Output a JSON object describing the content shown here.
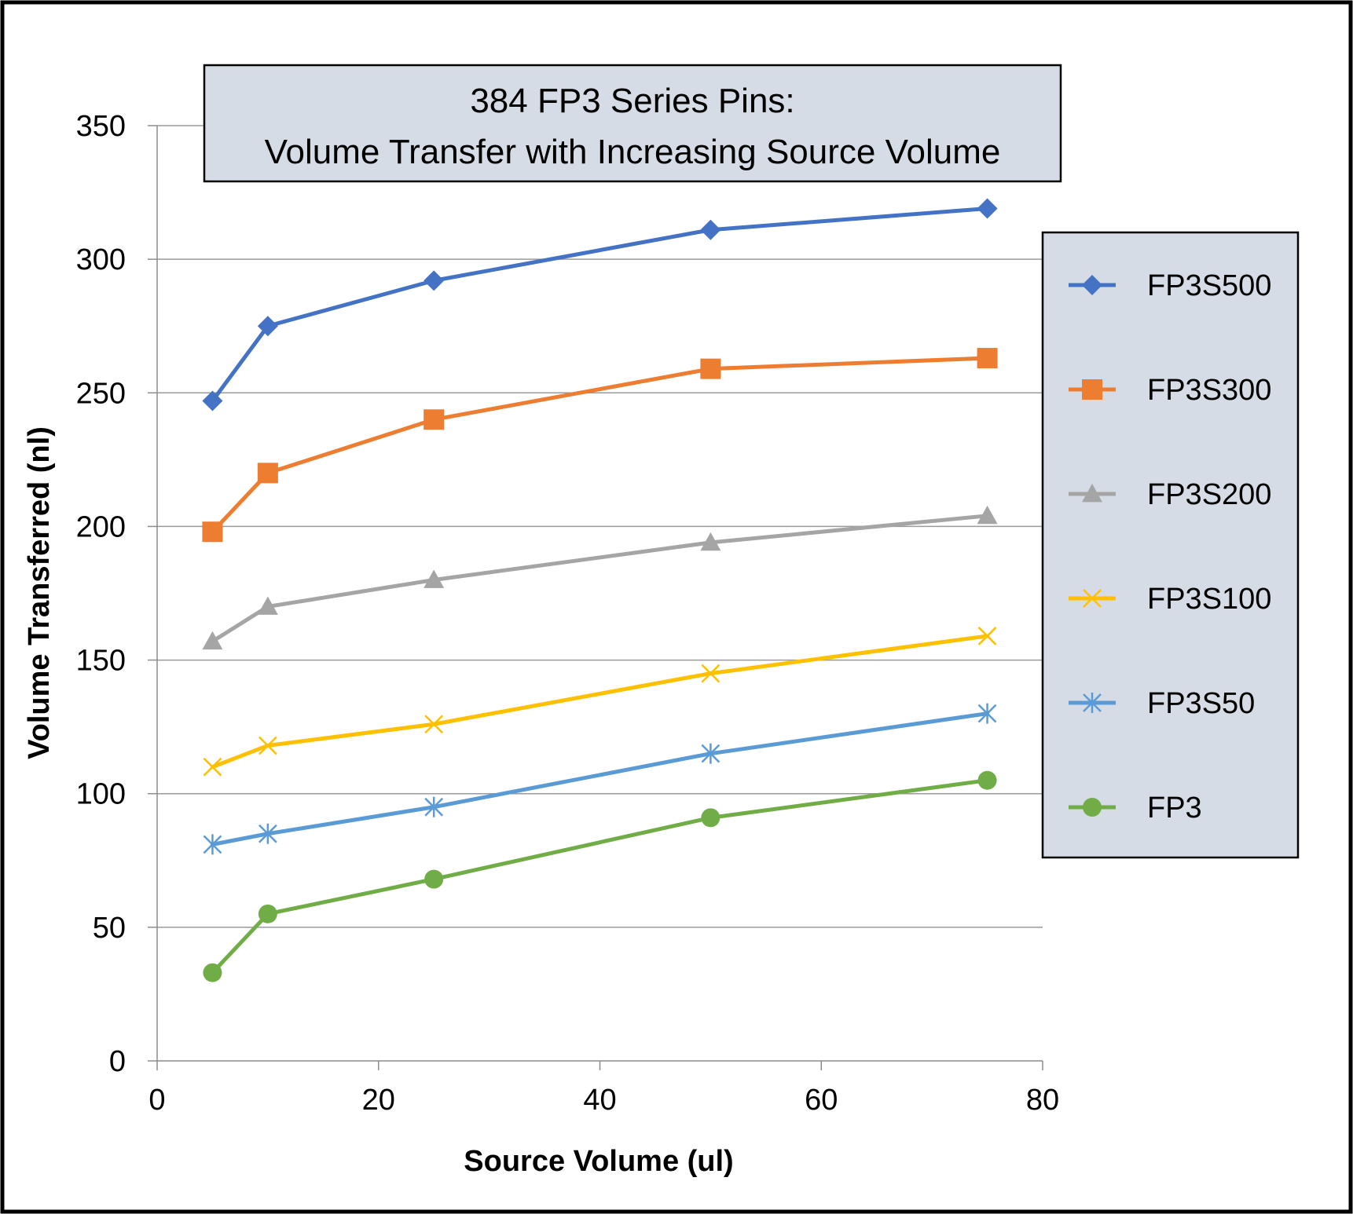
{
  "chart_data": {
    "type": "line",
    "title_lines": [
      "384 FP3 Series Pins:",
      "Volume Transfer with Increasing Source Volume"
    ],
    "xlabel": "Source Volume (ul)",
    "ylabel": "Volume Transferred (nl)",
    "xlim": [
      0,
      80
    ],
    "ylim": [
      0,
      350
    ],
    "xticks": [
      0,
      20,
      40,
      60,
      80
    ],
    "yticks": [
      0,
      50,
      100,
      150,
      200,
      250,
      300,
      350
    ],
    "grid": "horizontal",
    "legend_position": "right",
    "x": [
      5,
      10,
      25,
      50,
      75
    ],
    "series": [
      {
        "name": "FP3S500",
        "color": "#4472C4",
        "marker": "diamond",
        "values": [
          247,
          275,
          292,
          311,
          319
        ]
      },
      {
        "name": "FP3S300",
        "color": "#ED7D31",
        "marker": "square",
        "values": [
          198,
          220,
          240,
          259,
          263
        ]
      },
      {
        "name": "FP3S200",
        "color": "#A5A5A5",
        "marker": "triangle",
        "values": [
          157,
          170,
          180,
          194,
          204
        ]
      },
      {
        "name": "FP3S100",
        "color": "#FFC000",
        "marker": "x",
        "values": [
          110,
          118,
          126,
          145,
          159
        ]
      },
      {
        "name": "FP3S50",
        "color": "#5B9BD5",
        "marker": "star",
        "values": [
          81,
          85,
          95,
          115,
          130
        ]
      },
      {
        "name": "FP3",
        "color": "#70AD47",
        "marker": "circle",
        "values": [
          33,
          55,
          68,
          91,
          105
        ]
      }
    ]
  }
}
